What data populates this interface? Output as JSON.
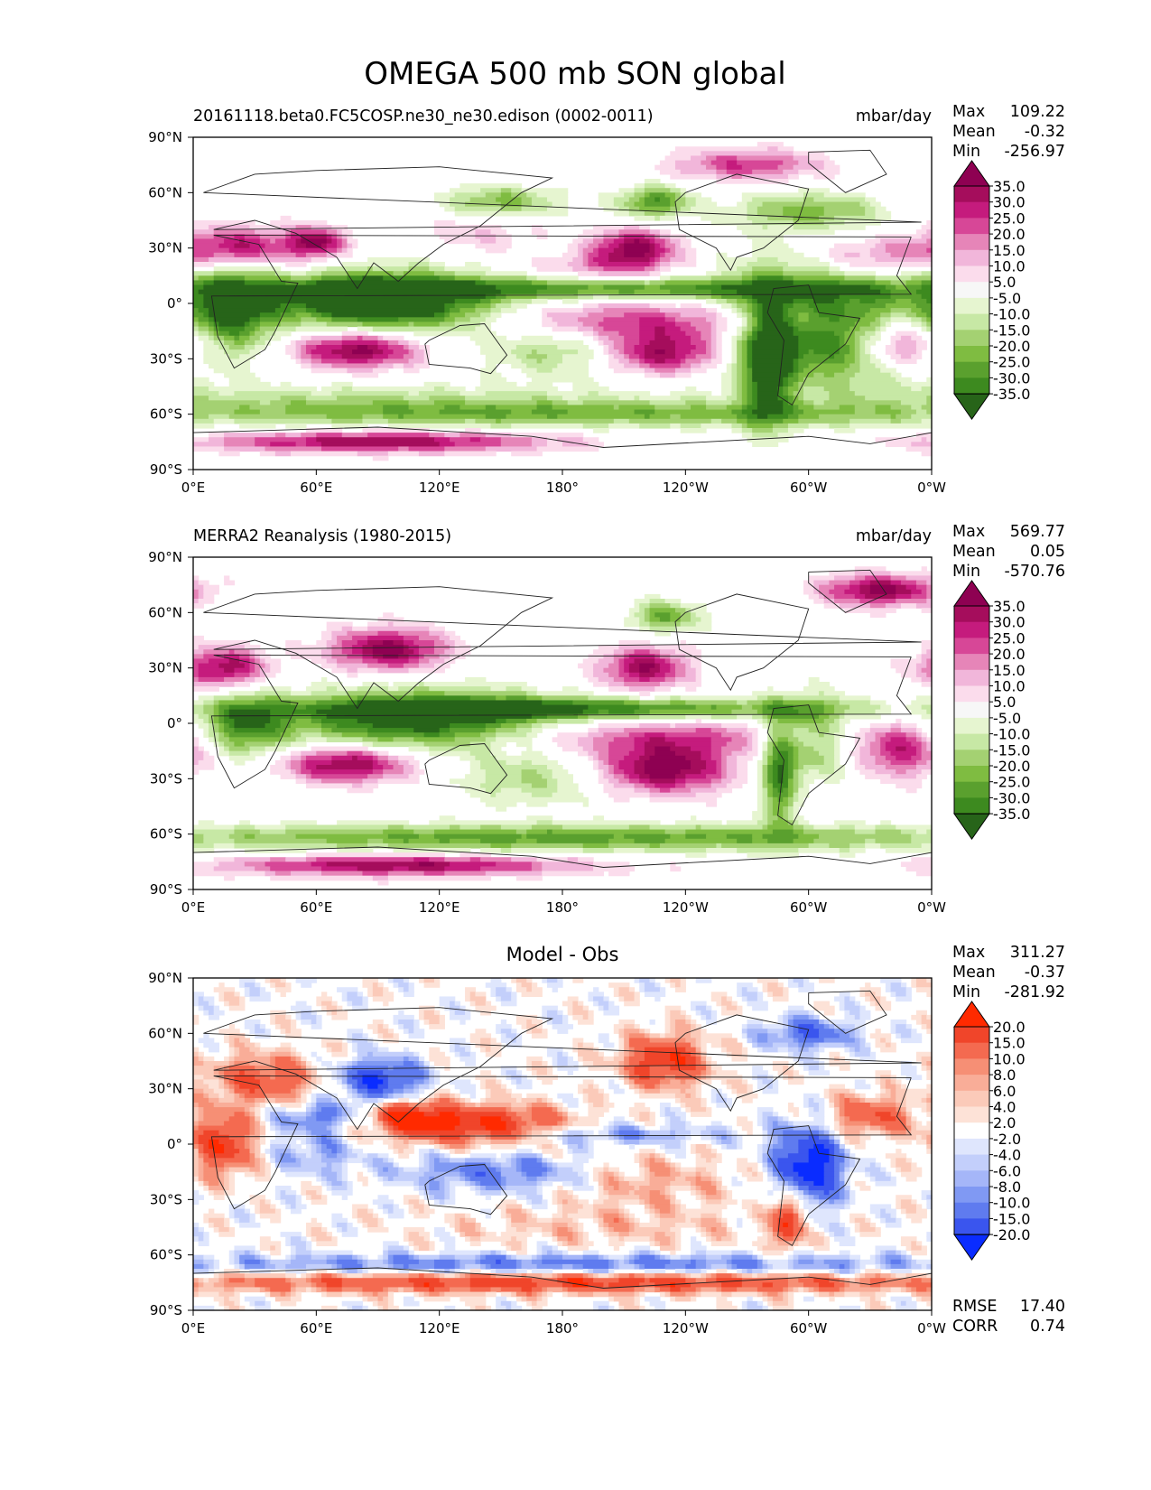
{
  "figure": {
    "title": "OMEGA 500 mb SON global"
  },
  "chart_data": [
    {
      "type": "heatmap",
      "panel": "test",
      "left_title": "20161118.beta0.FC5COSP.ne30_ne30.edison (0002-0011)",
      "right_title": "mbar/day",
      "stats": [
        {
          "label": "Max",
          "value": "109.22"
        },
        {
          "label": "Mean",
          "value": "-0.32"
        },
        {
          "label": "Min",
          "value": "-256.97"
        }
      ],
      "x_ticks": [
        "0°E",
        "60°E",
        "120°E",
        "180°",
        "120°W",
        "60°W",
        "0°W"
      ],
      "y_ticks": [
        "90°N",
        "60°N",
        "30°N",
        "0°",
        "30°S",
        "60°S",
        "90°S"
      ],
      "xlim": [
        0,
        360
      ],
      "ylim": [
        -90,
        90
      ],
      "colorbar": {
        "levels": [
          "35.0",
          "30.0",
          "25.0",
          "20.0",
          "15.0",
          "10.0",
          "5.0",
          "-5.0",
          "-10.0",
          "-15.0",
          "-20.0",
          "-25.0",
          "-30.0",
          "-35.0"
        ],
        "colors": [
          "#8e0152",
          "#a50d5c",
          "#c51b7d",
          "#d74797",
          "#e685b8",
          "#f1b6da",
          "#fbdcec",
          "#f7f7f7",
          "#e6f5d0",
          "#c7e8a5",
          "#a4d172",
          "#7fbc41",
          "#5aa02e",
          "#3d8a1f",
          "#276419"
        ],
        "extend": "both"
      },
      "fields": [
        {
          "lon": 310,
          "lat": -12,
          "sx": 40,
          "sy": 22,
          "v": -42
        },
        {
          "lon": 280,
          "lat": -30,
          "sx": 8,
          "sy": 25,
          "v": -38
        },
        {
          "lon": 105,
          "lat": 0,
          "sx": 35,
          "sy": 12,
          "v": -40
        },
        {
          "lon": 20,
          "lat": 0,
          "sx": 15,
          "sy": 15,
          "v": -38
        },
        {
          "lon": 75,
          "lat": 3,
          "sx": 25,
          "sy": 8,
          "v": -30
        },
        {
          "lon": 200,
          "lat": 8,
          "sx": 100,
          "sy": 4,
          "v": -28
        },
        {
          "lon": 180,
          "lat": -25,
          "sx": 25,
          "sy": 10,
          "v": -18
        },
        {
          "lon": 150,
          "lat": 55,
          "sx": 20,
          "sy": 6,
          "v": -22
        },
        {
          "lon": 225,
          "lat": 55,
          "sx": 12,
          "sy": 6,
          "v": -30
        },
        {
          "lon": 300,
          "lat": 50,
          "sx": 25,
          "sy": 7,
          "v": -22
        },
        {
          "lon": 180,
          "lat": -60,
          "sx": 160,
          "sy": 5,
          "v": -22
        },
        {
          "lon": 90,
          "lat": -52,
          "sx": 90,
          "sy": 6,
          "v": -12
        },
        {
          "lon": 230,
          "lat": -10,
          "sx": 60,
          "sy": 8,
          "v": 28
        },
        {
          "lon": 230,
          "lat": -27,
          "sx": 22,
          "sy": 8,
          "v": 38
        },
        {
          "lon": 345,
          "lat": -22,
          "sx": 15,
          "sy": 10,
          "v": 38
        },
        {
          "lon": 80,
          "lat": -25,
          "sx": 22,
          "sy": 7,
          "v": 40
        },
        {
          "lon": 20,
          "lat": 30,
          "sx": 20,
          "sy": 8,
          "v": 35
        },
        {
          "lon": 60,
          "lat": 33,
          "sx": 10,
          "sy": 6,
          "v": 35
        },
        {
          "lon": 215,
          "lat": 30,
          "sx": 15,
          "sy": 7,
          "v": 38
        },
        {
          "lon": 200,
          "lat": 20,
          "sx": 25,
          "sy": 5,
          "v": 15
        },
        {
          "lon": 330,
          "lat": 25,
          "sx": 20,
          "sy": 8,
          "v": 20
        },
        {
          "lon": 90,
          "lat": -75,
          "sx": 60,
          "sy": 4,
          "v": 35
        },
        {
          "lon": 270,
          "lat": 75,
          "sx": 25,
          "sy": 6,
          "v": 25
        },
        {
          "lon": 140,
          "lat": 38,
          "sx": 20,
          "sy": 8,
          "v": 10
        }
      ]
    },
    {
      "type": "heatmap",
      "panel": "reference",
      "left_title": "MERRA2 Reanalysis (1980-2015)",
      "right_title": "mbar/day",
      "stats": [
        {
          "label": "Max",
          "value": "569.77"
        },
        {
          "label": "Mean",
          "value": "0.05"
        },
        {
          "label": "Min",
          "value": "-570.76"
        }
      ],
      "x_ticks": [
        "0°E",
        "60°E",
        "120°E",
        "180°",
        "120°W",
        "60°W",
        "0°W"
      ],
      "y_ticks": [
        "90°N",
        "60°N",
        "30°N",
        "0°",
        "30°S",
        "60°S",
        "90°S"
      ],
      "xlim": [
        0,
        360
      ],
      "ylim": [
        -90,
        90
      ],
      "colorbar": {
        "levels": [
          "35.0",
          "30.0",
          "25.0",
          "20.0",
          "15.0",
          "10.0",
          "5.0",
          "-5.0",
          "-10.0",
          "-15.0",
          "-20.0",
          "-25.0",
          "-30.0",
          "-35.0"
        ],
        "colors": [
          "#8e0152",
          "#a50d5c",
          "#c51b7d",
          "#d74797",
          "#e685b8",
          "#f1b6da",
          "#fbdcec",
          "#f7f7f7",
          "#e6f5d0",
          "#c7e8a5",
          "#a4d172",
          "#7fbc41",
          "#5aa02e",
          "#3d8a1f",
          "#276419"
        ],
        "extend": "both"
      },
      "fields": [
        {
          "lon": 110,
          "lat": 2,
          "sx": 45,
          "sy": 11,
          "v": -42
        },
        {
          "lon": 190,
          "lat": 8,
          "sx": 90,
          "sy": 4,
          "v": -32
        },
        {
          "lon": 300,
          "lat": -8,
          "sx": 15,
          "sy": 15,
          "v": -25
        },
        {
          "lon": 285,
          "lat": -30,
          "sx": 6,
          "sy": 20,
          "v": -30
        },
        {
          "lon": 25,
          "lat": 0,
          "sx": 15,
          "sy": 12,
          "v": -30
        },
        {
          "lon": 165,
          "lat": -30,
          "sx": 25,
          "sy": 10,
          "v": -15
        },
        {
          "lon": 180,
          "lat": -62,
          "sx": 160,
          "sy": 5,
          "v": -28
        },
        {
          "lon": 230,
          "lat": 58,
          "sx": 12,
          "sy": 6,
          "v": -25
        },
        {
          "lon": 95,
          "lat": 40,
          "sx": 20,
          "sy": 8,
          "v": 38
        },
        {
          "lon": 75,
          "lat": -22,
          "sx": 22,
          "sy": 7,
          "v": 38
        },
        {
          "lon": 230,
          "lat": -25,
          "sx": 22,
          "sy": 9,
          "v": 40
        },
        {
          "lon": 230,
          "lat": -8,
          "sx": 55,
          "sy": 7,
          "v": 22
        },
        {
          "lon": 220,
          "lat": 30,
          "sx": 15,
          "sy": 8,
          "v": 35
        },
        {
          "lon": 15,
          "lat": 30,
          "sx": 15,
          "sy": 8,
          "v": 35
        },
        {
          "lon": 345,
          "lat": -15,
          "sx": 15,
          "sy": 10,
          "v": 28
        },
        {
          "lon": 335,
          "lat": 72,
          "sx": 20,
          "sy": 6,
          "v": 38
        },
        {
          "lon": 100,
          "lat": -77,
          "sx": 60,
          "sy": 4,
          "v": 35
        }
      ]
    },
    {
      "type": "heatmap",
      "panel": "difference",
      "title": "Model - Obs",
      "stats": [
        {
          "label": "Max",
          "value": "311.27"
        },
        {
          "label": "Mean",
          "value": "-0.37"
        },
        {
          "label": "Min",
          "value": "-281.92"
        }
      ],
      "metrics": [
        {
          "label": "RMSE",
          "value": "17.40"
        },
        {
          "label": "CORR",
          "value": "0.74"
        }
      ],
      "x_ticks": [
        "0°E",
        "60°E",
        "120°E",
        "180°",
        "120°W",
        "60°W",
        "0°W"
      ],
      "y_ticks": [
        "90°N",
        "60°N",
        "30°N",
        "0°",
        "30°S",
        "60°S",
        "90°S"
      ],
      "xlim": [
        0,
        360
      ],
      "ylim": [
        -90,
        90
      ],
      "colorbar": {
        "levels": [
          "20.0",
          "15.0",
          "10.0",
          "8.0",
          "6.0",
          "4.0",
          "2.0",
          "-2.0",
          "-4.0",
          "-6.0",
          "-8.0",
          "-10.0",
          "-15.0",
          "-20.0"
        ],
        "colors": [
          "#ff2a00",
          "#f0452a",
          "#f46a50",
          "#f68f75",
          "#f9ad98",
          "#fbcab9",
          "#fde2d7",
          "#ffffff",
          "#dfe6fd",
          "#c3cffb",
          "#a5b6f8",
          "#8099f3",
          "#5f7bef",
          "#3a55ee",
          "#0a2cff"
        ],
        "extend": "both"
      },
      "fields": [
        {
          "lon": 300,
          "lat": -12,
          "sx": 12,
          "sy": 15,
          "v": -25
        },
        {
          "lon": 290,
          "lat": -40,
          "sx": 5,
          "sy": 12,
          "v": 22
        },
        {
          "lon": 140,
          "lat": 10,
          "sx": 30,
          "sy": 8,
          "v": 22
        },
        {
          "lon": 105,
          "lat": 15,
          "sx": 12,
          "sy": 6,
          "v": 18
        },
        {
          "lon": 150,
          "lat": -15,
          "sx": 35,
          "sy": 8,
          "v": -12
        },
        {
          "lon": 220,
          "lat": -20,
          "sx": 30,
          "sy": 10,
          "v": 8
        },
        {
          "lon": 15,
          "lat": 0,
          "sx": 10,
          "sy": 12,
          "v": 20
        },
        {
          "lon": 60,
          "lat": 15,
          "sx": 15,
          "sy": 6,
          "v": -12
        },
        {
          "lon": 60,
          "lat": -5,
          "sx": 15,
          "sy": 8,
          "v": -8
        },
        {
          "lon": 200,
          "lat": 5,
          "sx": 40,
          "sy": 4,
          "v": -10
        },
        {
          "lon": 35,
          "lat": 35,
          "sx": 20,
          "sy": 10,
          "v": 15
        },
        {
          "lon": 90,
          "lat": 35,
          "sx": 15,
          "sy": 8,
          "v": -20
        },
        {
          "lon": 230,
          "lat": 45,
          "sx": 15,
          "sy": 10,
          "v": 20
        },
        {
          "lon": 330,
          "lat": 15,
          "sx": 15,
          "sy": 8,
          "v": 15
        },
        {
          "lon": 300,
          "lat": 60,
          "sx": 15,
          "sy": 6,
          "v": -15
        },
        {
          "lon": 180,
          "lat": -75,
          "sx": 150,
          "sy": 4,
          "v": 18
        },
        {
          "lon": 180,
          "lat": -65,
          "sx": 150,
          "sy": 4,
          "v": -12
        },
        {
          "lon": 200,
          "lat": -45,
          "sx": 60,
          "sy": 8,
          "v": 5
        }
      ]
    }
  ]
}
